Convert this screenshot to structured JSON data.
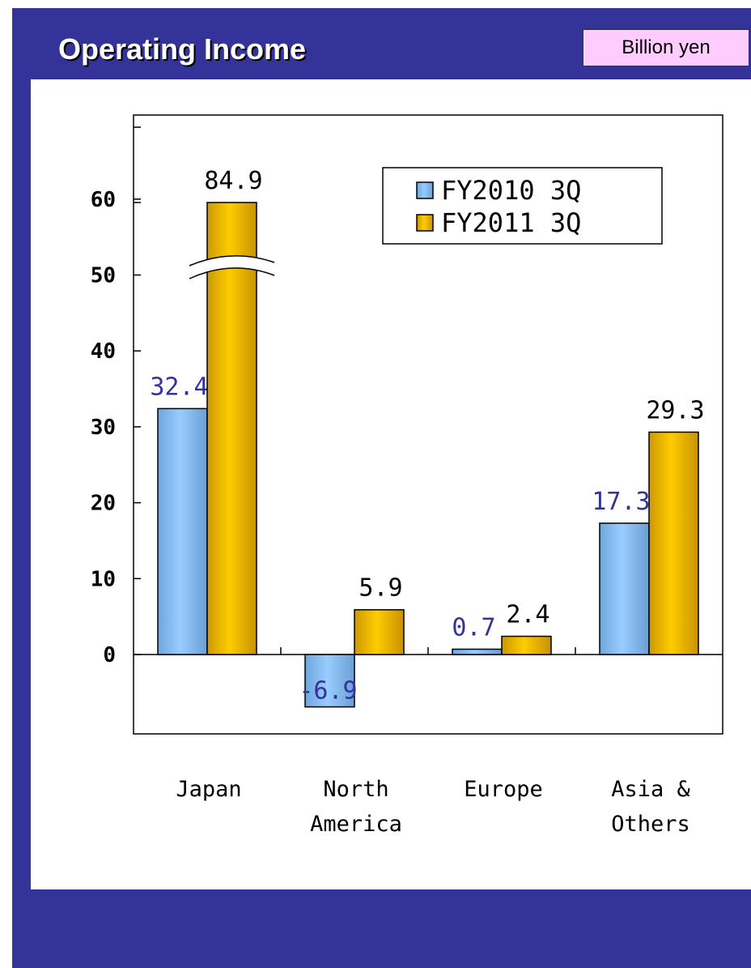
{
  "header": {
    "title": "Operating Income",
    "unit": "Billion yen"
  },
  "colors": {
    "panel_bg": "#333399",
    "series_2010": "#99ccff",
    "series_2011": "#ffcc00",
    "label_2010": "#333399",
    "label_2011": "#000000",
    "unit_bg": "#ffccff"
  },
  "chart_data": {
    "type": "bar",
    "title": "Operating Income",
    "unit": "Billion yen",
    "categories": [
      [
        "Japan"
      ],
      [
        "North",
        "America"
      ],
      [
        "Europe"
      ],
      [
        "Asia &",
        "Others"
      ]
    ],
    "series": [
      {
        "name": "FY2010 3Q",
        "values": [
          32.4,
          -6.9,
          0.7,
          17.3
        ],
        "labels": [
          "32.4",
          "-6.9",
          "0.7",
          "17.3"
        ]
      },
      {
        "name": "FY2011 3Q",
        "values": [
          84.9,
          5.9,
          2.4,
          29.3
        ],
        "labels": [
          "84.9",
          "5.9",
          "2.4",
          "29.3"
        ]
      }
    ],
    "y_ticks": [
      0,
      10,
      20,
      30,
      40,
      50,
      60
    ],
    "y_axis_break": true,
    "legend_position": "top-right",
    "grid": false
  }
}
